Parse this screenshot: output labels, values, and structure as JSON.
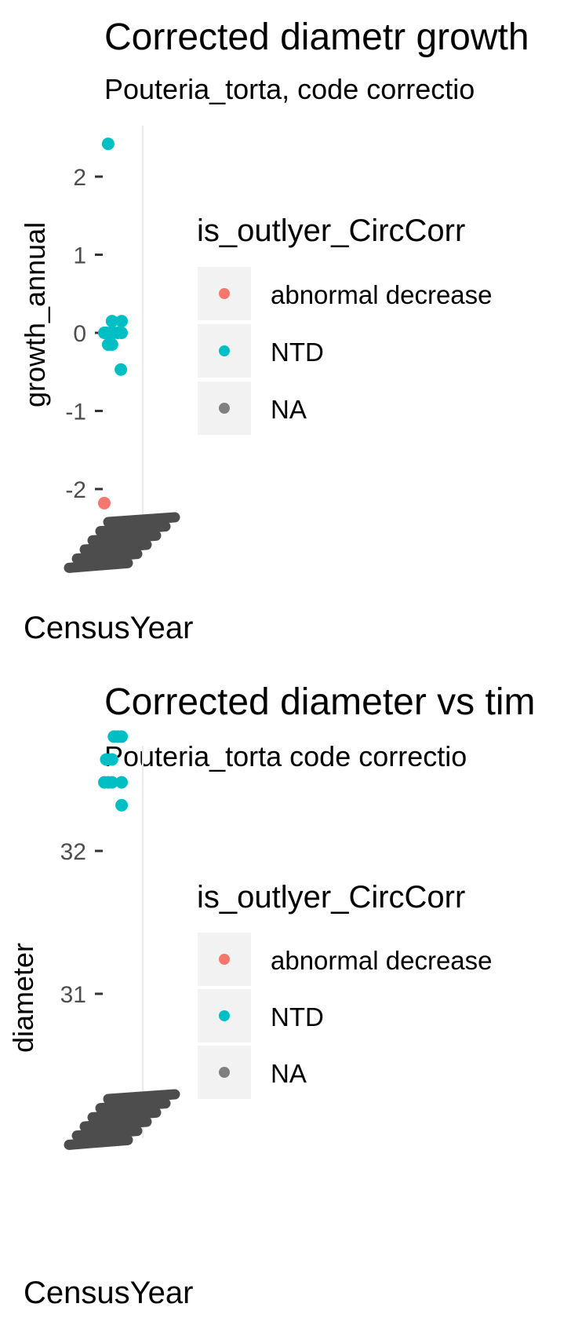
{
  "chart_data": [
    {
      "type": "scatter",
      "title": "Corrected diametr growth",
      "subtitle": "Pouteria_torta, code correctio",
      "xlabel": "CensusYear",
      "ylabel": "growth_annual",
      "yticks": [
        "2",
        "1",
        "0",
        "-1",
        "-2"
      ],
      "ytick_values": [
        2,
        1,
        0,
        -1,
        -2
      ],
      "ylim": [
        -2.58,
        2.62
      ],
      "grid": true,
      "legend": {
        "title": "is_outlyer_CircCorr",
        "placement": "right",
        "entries": [
          {
            "label": "abnormal decrease",
            "color": "#F8766D"
          },
          {
            "label": "NTD",
            "color": "#00BFC4"
          },
          {
            "label": "NA",
            "color": "#7F7F7F"
          }
        ]
      },
      "series": [
        {
          "name": "abnormal decrease",
          "color": "#F8766D",
          "points": [
            {
              "x": 0.0,
              "y": -2.18
            }
          ]
        },
        {
          "name": "NTD",
          "color": "#00BFC4",
          "points": [
            {
              "x": 0.1,
              "y": 2.42
            },
            {
              "x": 0.0,
              "y": 0.0
            },
            {
              "x": 0.05,
              "y": 0.0
            },
            {
              "x": 0.15,
              "y": 0.0
            },
            {
              "x": 0.25,
              "y": 0.0
            },
            {
              "x": 0.35,
              "y": 0.0
            },
            {
              "x": 0.45,
              "y": 0.0
            },
            {
              "x": 0.2,
              "y": 0.15
            },
            {
              "x": 0.45,
              "y": 0.15
            },
            {
              "x": 0.1,
              "y": -0.15
            },
            {
              "x": 0.2,
              "y": -0.15
            },
            {
              "x": 0.43,
              "y": -0.47
            }
          ]
        }
      ],
      "x_tick_labels_overlapping": true
    },
    {
      "type": "scatter",
      "title": "Corrected diameter vs tim",
      "subtitle": "Pouteria_torta code correctio",
      "xlabel": "CensusYear",
      "ylabel": "diameter",
      "yticks": [
        "32",
        "31"
      ],
      "ytick_values": [
        32,
        31
      ],
      "ylim": [
        29.8,
        32.9
      ],
      "grid": true,
      "legend": {
        "title": "is_outlyer_CircCorr",
        "placement": "right",
        "entries": [
          {
            "label": "abnormal decrease",
            "color": "#F8766D"
          },
          {
            "label": "NTD",
            "color": "#00BFC4"
          },
          {
            "label": "NA",
            "color": "#7F7F7F"
          }
        ]
      },
      "series": [
        {
          "name": "abnormal decrease",
          "color": "#F8766D",
          "points": [
            {
              "x": 0.05,
              "y": 30.16
            }
          ]
        },
        {
          "name": "NTD",
          "color": "#00BFC4",
          "points": [
            {
              "x": 0.25,
              "y": 32.8
            },
            {
              "x": 0.35,
              "y": 32.8
            },
            {
              "x": 0.45,
              "y": 32.8
            },
            {
              "x": 0.05,
              "y": 32.64
            },
            {
              "x": 0.2,
              "y": 32.64
            },
            {
              "x": 0.0,
              "y": 32.48
            },
            {
              "x": 0.1,
              "y": 32.48
            },
            {
              "x": 0.2,
              "y": 32.48
            },
            {
              "x": 0.45,
              "y": 32.48
            },
            {
              "x": 0.45,
              "y": 32.32
            }
          ]
        }
      ],
      "x_tick_labels_overlapping": true
    }
  ]
}
